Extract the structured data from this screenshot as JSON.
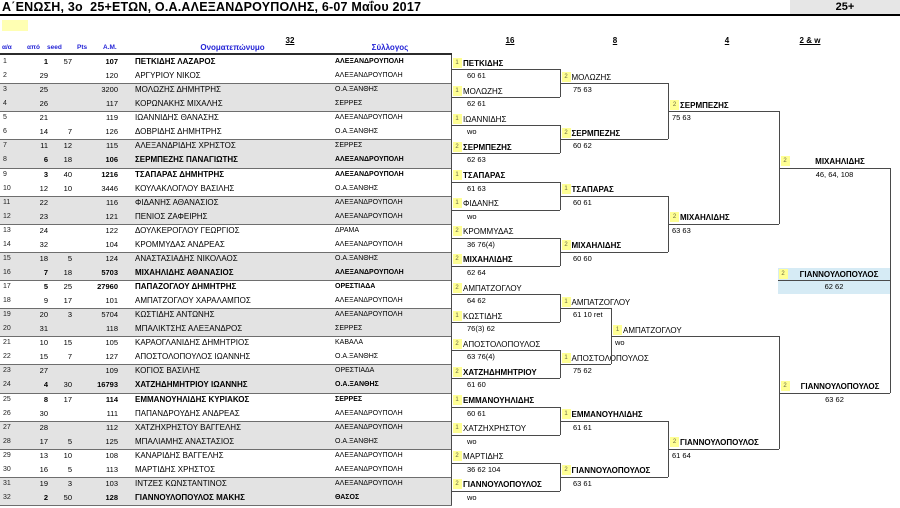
{
  "header": {
    "title": "Α΄ΕΝΩΣΗ, 3ο  25+ΕΤΩΝ, Ο.Α.ΑΛΕΞΑΝΔΡΟΥΠΟΛΗΣ, 6-07 Μαΐου 2017",
    "category_badge": "25+"
  },
  "table_headers": {
    "num": "α/α",
    "apo": "από",
    "seed": "seed",
    "pts": "Pts",
    "am": "Α.Μ.",
    "name": "Ονοματεπώνυμο",
    "club": "Σύλλογος"
  },
  "round_headers": [
    "32",
    "16",
    "8",
    "4",
    "2 & w"
  ],
  "players": [
    {
      "n": "1",
      "rank": "1",
      "pts": "57",
      "am": "107",
      "name": "ΠΕΤΚΙΔΗΣ ΛΑΖΑΡΟΣ",
      "club": "ΑΛΕΞΑΝΔΡΟΥΠΟΛΗ",
      "seeded": true
    },
    {
      "n": "2",
      "rank": "29",
      "pts": "",
      "am": "120",
      "name": "ΑΡΓΥΡΙΟΥ ΝΙΚΟΣ",
      "club": "ΑΛΕΞΑΝΔΡΟΥΠΟΛΗ",
      "seeded": false
    },
    {
      "n": "3",
      "rank": "25",
      "pts": "",
      "am": "3200",
      "name": "ΜΟΛΩΖΗΣ ΔΗΜΗΤΡΗΣ",
      "club": "Ο.Α.ΞΑΝΘΗΣ",
      "seeded": false
    },
    {
      "n": "4",
      "rank": "26",
      "pts": "",
      "am": "117",
      "name": "ΚΟΡΩΝΑΚΗΣ ΜΙΧΑΛΗΣ",
      "club": "ΣΕΡΡΕΣ",
      "seeded": false
    },
    {
      "n": "5",
      "rank": "21",
      "pts": "",
      "am": "119",
      "name": "ΙΩΑΝΝΙΔΗΣ ΘΑΝΑΣΗΣ",
      "club": "ΑΛΕΞΑΝΔΡΟΥΠΟΛΗ",
      "seeded": false
    },
    {
      "n": "6",
      "rank": "14",
      "pts": "7",
      "am": "126",
      "name": "ΔΟΒΡΙΔΗΣ ΔΗΜΗΤΡΗΣ",
      "club": "Ο.Α.ΞΑΝΘΗΣ",
      "seeded": false
    },
    {
      "n": "7",
      "rank": "11",
      "pts": "12",
      "am": "115",
      "name": "ΑΛΕΞΑΝΔΡΙΔΗΣ ΧΡΗΣΤΟΣ",
      "club": "ΣΕΡΡΕΣ",
      "seeded": false
    },
    {
      "n": "8",
      "rank": "6",
      "pts": "18",
      "am": "106",
      "name": "ΣΕΡΜΠΕΖΗΣ ΠΑΝΑΓΙΩΤΗΣ",
      "club": "ΑΛΕΞΑΝΔΡΟΥΠΟΛΗ",
      "seeded": true
    },
    {
      "n": "9",
      "rank": "3",
      "pts": "40",
      "am": "1216",
      "name": "ΤΣΑΠΑΡΑΣ ΔΗΜΗΤΡΗΣ",
      "club": "ΑΛΕΞΑΝΔΡΟΥΠΟΛΗ",
      "seeded": true
    },
    {
      "n": "10",
      "rank": "12",
      "pts": "10",
      "am": "3446",
      "name": "ΚΟΥΛΑΚΛΟΓΛΟΥ ΒΑΣΙΛΗΣ",
      "club": "Ο.Α.ΞΑΝΘΗΣ",
      "seeded": false
    },
    {
      "n": "11",
      "rank": "22",
      "pts": "",
      "am": "116",
      "name": "ΦΙΔΑΝΗΣ ΑΘΑΝΑΣΙΟΣ",
      "club": "ΑΛΕΞΑΝΔΡΟΥΠΟΛΗ",
      "seeded": false
    },
    {
      "n": "12",
      "rank": "23",
      "pts": "",
      "am": "121",
      "name": "ΠΕΝΙΟΣ ΖΑΦΕΙΡΗΣ",
      "club": "ΑΛΕΞΑΝΔΡΟΥΠΟΛΗ",
      "seeded": false
    },
    {
      "n": "13",
      "rank": "24",
      "pts": "",
      "am": "122",
      "name": "ΔΟΥΛΚΕΡΟΓΛΟΥ ΓΕΩΡΓΙΟΣ",
      "club": "ΔΡΑΜΑ",
      "seeded": false
    },
    {
      "n": "14",
      "rank": "32",
      "pts": "",
      "am": "104",
      "name": "ΚΡΟΜΜΥΔΑΣ ΑΝΔΡΕΑΣ",
      "club": "ΑΛΕΞΑΝΔΡΟΥΠΟΛΗ",
      "seeded": false
    },
    {
      "n": "15",
      "rank": "18",
      "pts": "5",
      "am": "124",
      "name": "ΑΝΑΣΤΑΣΙΑΔΗΣ ΝΙΚΟΛΑΟΣ",
      "club": "Ο.Α.ΞΑΝΘΗΣ",
      "seeded": false
    },
    {
      "n": "16",
      "rank": "7",
      "pts": "18",
      "am": "5703",
      "name": "ΜΙΧΑΗΛΙΔΗΣ ΑΘΑΝΑΣΙΟΣ",
      "club": "ΑΛΕΞΑΝΔΡΟΥΠΟΛΗ",
      "seeded": true
    },
    {
      "n": "17",
      "rank": "5",
      "pts": "25",
      "am": "27960",
      "name": "ΠΑΠΑΖΟΓΛΟΥ ΔΗΜΗΤΡΗΣ",
      "club": "ΟΡΕΣΤΙΑΔΑ",
      "seeded": true
    },
    {
      "n": "18",
      "rank": "9",
      "pts": "17",
      "am": "101",
      "name": "ΑΜΠΑΤΖΟΓΛΟΥ ΧΑΡΑΛΑΜΠΟΣ",
      "club": "ΑΛΕΞΑΝΔΡΟΥΠΟΛΗ",
      "seeded": false
    },
    {
      "n": "19",
      "rank": "20",
      "pts": "3",
      "am": "5704",
      "name": "ΚΩΣΤΙΔΗΣ ΑΝΤΩΝΗΣ",
      "club": "ΑΛΕΞΑΝΔΡΟΥΠΟΛΗ",
      "seeded": false
    },
    {
      "n": "20",
      "rank": "31",
      "pts": "",
      "am": "118",
      "name": "ΜΠΑΛΙΚΤΣΗΣ ΑΛΕΞΑΝΔΡΟΣ",
      "club": "ΣΕΡΡΕΣ",
      "seeded": false
    },
    {
      "n": "21",
      "rank": "10",
      "pts": "15",
      "am": "105",
      "name": "ΚΑΡΑΟΓΛΑΝΙΔΗΣ ΔΗΜΗΤΡΙΟΣ",
      "club": "ΚΑΒΑΛΑ",
      "seeded": false
    },
    {
      "n": "22",
      "rank": "15",
      "pts": "7",
      "am": "127",
      "name": "ΑΠΟΣΤΟΛΟΠΟΥΛΟΣ ΙΩΑΝΝΗΣ",
      "club": "Ο.Α.ΞΑΝΘΗΣ",
      "seeded": false
    },
    {
      "n": "23",
      "rank": "27",
      "pts": "",
      "am": "109",
      "name": "ΚΟΓΙΟΣ ΒΑΣΙΛΗΣ",
      "club": "ΟΡΕΣΤΙΑΔΑ",
      "seeded": false
    },
    {
      "n": "24",
      "rank": "4",
      "pts": "30",
      "am": "16793",
      "name": "ΧΑΤΖΗΔΗΜΗΤΡΙΟΥ ΙΩΑΝΝΗΣ",
      "club": "Ο.Α.ΞΑΝΘΗΣ",
      "seeded": true
    },
    {
      "n": "25",
      "rank": "8",
      "pts": "17",
      "am": "114",
      "name": "ΕΜΜΑΝΟΥΗΛΙΔΗΣ ΚΥΡΙΑΚΟΣ",
      "club": "ΣΕΡΡΕΣ",
      "seeded": true
    },
    {
      "n": "26",
      "rank": "30",
      "pts": "",
      "am": "111",
      "name": "ΠΑΠΑΝΔΡΟΥΔΗΣ ΑΝΔΡΕΑΣ",
      "club": "ΑΛΕΞΑΝΔΡΟΥΠΟΛΗ",
      "seeded": false
    },
    {
      "n": "27",
      "rank": "28",
      "pts": "",
      "am": "112",
      "name": "ΧΑΤΖΗΧΡΗΣΤΟΥ ΒΑΓΓΕΛΗΣ",
      "club": "ΑΛΕΞΑΝΔΡΟΥΠΟΛΗ",
      "seeded": false
    },
    {
      "n": "28",
      "rank": "17",
      "pts": "5",
      "am": "125",
      "name": "ΜΠΑΛΙΑΜΗΣ ΑΝΑΣΤΑΣΙΟΣ",
      "club": "Ο.Α.ΞΑΝΘΗΣ",
      "seeded": false
    },
    {
      "n": "29",
      "rank": "13",
      "pts": "10",
      "am": "108",
      "name": "ΚΑΝΑΡΙΔΗΣ ΒΑΓΓΕΛΗΣ",
      "club": "ΑΛΕΞΑΝΔΡΟΥΠΟΛΗ",
      "seeded": false
    },
    {
      "n": "30",
      "rank": "16",
      "pts": "5",
      "am": "113",
      "name": "ΜΑΡΤΙΔΗΣ ΧΡΗΣΤΟΣ",
      "club": "ΑΛΕΞΑΝΔΡΟΥΠΟΛΗ",
      "seeded": false
    },
    {
      "n": "31",
      "rank": "19",
      "pts": "3",
      "am": "103",
      "name": "ΙΝΤΖΕΣ ΚΩΝΣΤΑΝΤΙΝΟΣ",
      "club": "ΑΛΕΞΑΝΔΡΟΥΠΟΛΗ",
      "seeded": false
    },
    {
      "n": "32",
      "rank": "2",
      "pts": "50",
      "am": "128",
      "name": "ΓΙΑΝΝΟΥΛΟΠΟΥΛΟΣ ΜΑΚΗΣ",
      "club": "ΘΑΣΟΣ",
      "seeded": true
    }
  ],
  "bracket": {
    "col16_entries": [
      {
        "day": "1",
        "name": "ΠΕΤΚΙΔΗΣ",
        "score": "60 61",
        "seeded": true
      },
      {
        "day": "1",
        "name": "ΜΟΛΩΖΗΣ",
        "score": "62 61",
        "seeded": false
      },
      {
        "day": "1",
        "name": "ΙΩΑΝΝΙΔΗΣ",
        "score": "wo",
        "seeded": false
      },
      {
        "day": "2",
        "name": "ΣΕΡΜΠΕΖΗΣ",
        "score": "62 63",
        "seeded": true
      },
      {
        "day": "1",
        "name": "ΤΣΑΠΑΡΑΣ",
        "score": "61 63",
        "seeded": true
      },
      {
        "day": "1",
        "name": "ΦΙΔΑΝΗΣ",
        "score": "wo",
        "seeded": false
      },
      {
        "day": "2",
        "name": "ΚΡΟΜΜΥΔΑΣ",
        "score": "36 76(4)",
        "seeded": false
      },
      {
        "day": "2",
        "name": "ΜΙΧΑΗΛΙΔΗΣ",
        "score": "62 64",
        "seeded": true
      },
      {
        "day": "2",
        "name": "ΑΜΠΑΤΖΟΓΛΟΥ",
        "score": "64 62",
        "seeded": false
      },
      {
        "day": "1",
        "name": "ΚΩΣΤΙΔΗΣ",
        "score": "76(3) 62",
        "seeded": false
      },
      {
        "day": "2",
        "name": "ΑΠΟΣΤΟΛΟΠΟΥΛΟΣ",
        "score": "63 76(4)",
        "seeded": false
      },
      {
        "day": "2",
        "name": "ΧΑΤΖΗΔΗΜΗΤΡΙΟΥ",
        "score": "61 60",
        "seeded": true
      },
      {
        "day": "1",
        "name": "ΕΜΜΑΝΟΥΗΛΙΔΗΣ",
        "score": "60 61",
        "seeded": true
      },
      {
        "day": "1",
        "name": "ΧΑΤΖΗΧΡΗΣΤΟΥ",
        "score": "wo",
        "seeded": false
      },
      {
        "day": "2",
        "name": "ΜΑΡΤΙΔΗΣ",
        "score": "36 62 104",
        "seeded": false
      },
      {
        "day": "2",
        "name": "ΓΙΑΝΝΟΥΛΟΠΟΥΛΟΣ",
        "score": "wo",
        "seeded": true
      }
    ],
    "col8_entries": [
      {
        "day": "2",
        "name": "ΜΟΛΩΖΗΣ",
        "score": "75 63",
        "seeded": false
      },
      {
        "day": "2",
        "name": "ΣΕΡΜΠΕΖΗΣ",
        "score": "60 62",
        "seeded": true
      },
      {
        "day": "1",
        "name": "ΤΣΑΠΑΡΑΣ",
        "score": "60 61",
        "seeded": true
      },
      {
        "day": "2",
        "name": "ΜΙΧΑΗΛΙΔΗΣ",
        "score": "60 60",
        "seeded": true
      },
      {
        "day": "1",
        "name": "ΑΜΠΑΤΖΟΓΛΟΥ",
        "score": "61 10 ret",
        "seeded": false
      },
      {
        "day": "1",
        "name": "ΑΠΟΣΤΟΛΟΠΟΥΛΟΣ",
        "score": "75 62",
        "seeded": false
      },
      {
        "day": "1",
        "name": "ΕΜΜΑΝΟΥΗΛΙΔΗΣ",
        "score": "61 61",
        "seeded": true
      },
      {
        "day": "2",
        "name": "ΓΙΑΝΝΟΥΛΟΠΟΥΛΟΣ",
        "score": "63 61",
        "seeded": true
      }
    ],
    "col4_entries": [
      {
        "day": "2",
        "name": "ΣΕΡΜΠΕΖΗΣ",
        "score": "75 63",
        "seeded": true
      },
      {
        "day": "2",
        "name": "ΜΙΧΑΗΛΙΔΗΣ",
        "score": "63 63",
        "seeded": true
      },
      {
        "day": "1",
        "name": "ΑΜΠΑΤΖΟΓΛΟΥ",
        "score": "wo",
        "seeded": false
      },
      {
        "day": "2",
        "name": "ΓΙΑΝΝΟΥΛΟΠΟΥΛΟΣ",
        "score": "61 64",
        "seeded": true
      }
    ],
    "col2_entries": [
      {
        "day": "2",
        "name": "ΜΙΧΑΗΛΙΔΗΣ",
        "score": "46, 64, 108",
        "seeded": true
      },
      {
        "day": "2",
        "name": "ΓΙΑΝΝΟΥΛΟΠΟΥΛΟΣ",
        "score": "63 62",
        "seeded": true
      }
    ],
    "winner": {
      "day": "2",
      "name": "ΓΙΑΝΝΟΥΛΟΠΟΥΛΟΣ",
      "score": "62 62",
      "seeded": true
    }
  },
  "colors": {
    "header_blue": "#2424D6",
    "day_box_yellow": "#FFFF94",
    "legend_yellow": "#FFFFB3",
    "row_shade_gray": "#E3E3E3",
    "badge_gray": "#E6E6E6",
    "champion_highlight": "#D6EBF5",
    "bracket_line": "#4a4a4a"
  }
}
